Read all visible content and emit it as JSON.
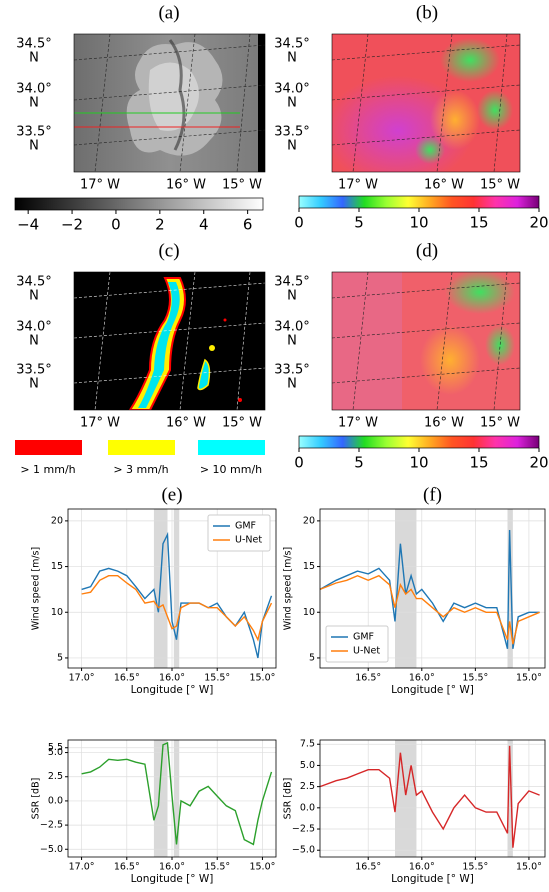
{
  "maps": [
    {
      "label": "(a)"
    },
    {
      "label": "(b)"
    },
    {
      "label": "(c)"
    },
    {
      "label": "(d)"
    }
  ],
  "map_lat_labels": [
    [
      "34.5°",
      "N"
    ],
    [
      "34.0°",
      "N"
    ],
    [
      "33.5°",
      "N"
    ]
  ],
  "map_lon_labels": [
    "17° W",
    "16° W",
    "15° W"
  ],
  "colorbars": [
    {
      "xlim": [
        -4.6,
        6.7
      ],
      "colors": [
        "#000000",
        "#ffffff"
      ],
      "ticks": [
        {
          "value": -4,
          "label": "−4"
        },
        {
          "value": -2,
          "label": "−2"
        },
        0,
        2,
        4,
        6
      ]
    },
    {
      "xlim": [
        0,
        20
      ],
      "colors": [
        "#9ff",
        "#3cf",
        "#36f",
        "#2d2",
        "#9f3",
        "#ff3",
        "#fa2",
        "#f52",
        "#f33",
        "#f3a",
        "#d2d",
        "#707"
      ],
      "ticks": [
        0,
        5,
        10,
        15,
        20
      ]
    },
    {
      "xlim": [
        0,
        20
      ],
      "colors": [
        "#9ff",
        "#3cf",
        "#36f",
        "#2d2",
        "#9f3",
        "#ff3",
        "#fa2",
        "#f52",
        "#f33",
        "#f3a",
        "#d2d",
        "#707"
      ],
      "ticks": [
        0,
        5,
        10,
        15,
        20
      ]
    }
  ],
  "rain_legend": [
    {
      "label": "> 1 mm/h",
      "color": "#ff0000"
    },
    {
      "label": "> 3 mm/h",
      "color": "#ffff00"
    },
    {
      "label": "> 10 mm/h",
      "color": "#00ffff"
    }
  ],
  "chart_data": [
    {
      "type": "line",
      "title": "(e)",
      "ylabel": "Wind speed [m/s]",
      "xlabel": "Longitude [° W]",
      "legend": "upper right",
      "grid": true,
      "xlim": [
        17.15,
        14.85
      ],
      "ylim": [
        3.9,
        21.3
      ],
      "xticks": [
        {
          "value": 17.0,
          "label": "17.0°"
        },
        {
          "value": 16.5,
          "label": "16.5°"
        },
        {
          "value": 16.0,
          "label": "16.0°"
        },
        {
          "value": 15.5,
          "label": "15.5°"
        },
        {
          "value": 15.0,
          "label": "15.0°"
        }
      ],
      "yticks": [
        5,
        10,
        15,
        20
      ],
      "shaded_spans": [
        [
          16.2,
          16.05
        ],
        [
          15.98,
          15.92
        ]
      ],
      "x": [
        17.0,
        16.9,
        16.8,
        16.7,
        16.6,
        16.5,
        16.4,
        16.3,
        16.2,
        16.15,
        16.1,
        16.05,
        16.0,
        15.95,
        15.9,
        15.8,
        15.7,
        15.6,
        15.5,
        15.4,
        15.3,
        15.2,
        15.1,
        15.05,
        15.0,
        14.9
      ],
      "series": [
        {
          "name": "GMF",
          "color": "#1f77b4",
          "values": [
            12.5,
            12.8,
            14.5,
            14.8,
            14.5,
            14.0,
            12.8,
            11.5,
            12.5,
            10,
            17.5,
            18.5,
            9,
            7,
            11,
            11,
            11,
            10.5,
            11,
            9.5,
            8.5,
            10,
            7,
            5,
            9,
            11.8
          ]
        },
        {
          "name": "U-Net",
          "color": "#ff7f0e",
          "values": [
            12,
            12.2,
            13.5,
            14,
            14,
            13.2,
            12.5,
            11,
            11.2,
            10.5,
            10.8,
            9.5,
            8.2,
            8.5,
            10.5,
            11,
            11,
            10.5,
            10.5,
            9.5,
            8.5,
            9.5,
            8,
            7,
            9,
            11
          ]
        }
      ]
    },
    {
      "type": "line",
      "ylabel": "SSR [dB]",
      "xlabel": "Longitude [° W]",
      "grid": true,
      "color": "#2ca02c",
      "xlim": [
        17.15,
        14.85
      ],
      "ylim": [
        -5.8,
        6.3
      ],
      "xticks": [
        {
          "value": 17.0,
          "label": "17.0°"
        },
        {
          "value": 16.5,
          "label": "16.5°"
        },
        {
          "value": 16.0,
          "label": "16.0°"
        },
        {
          "value": 15.5,
          "label": "15.5°"
        },
        {
          "value": 15.0,
          "label": "15.0°"
        }
      ],
      "yticks": [
        5.5,
        {
          "value": 5.0,
          "label": "5.0"
        },
        2.5,
        {
          "value": 0,
          "label": "0.0"
        },
        {
          "value": -2.5,
          "label": "−2.5"
        },
        {
          "value": -5.0,
          "label": "−5.0"
        }
      ],
      "shaded_spans": [
        [
          16.2,
          16.05
        ],
        [
          15.98,
          15.92
        ]
      ],
      "x": [
        17.0,
        16.9,
        16.8,
        16.7,
        16.6,
        16.5,
        16.4,
        16.3,
        16.2,
        16.15,
        16.1,
        16.05,
        16.0,
        15.95,
        15.9,
        15.8,
        15.7,
        15.6,
        15.5,
        15.4,
        15.3,
        15.2,
        15.1,
        15.05,
        15.0,
        14.9
      ],
      "values": [
        2.8,
        3,
        3.5,
        4.3,
        4.2,
        4.3,
        4,
        3.8,
        -2,
        -0.5,
        5.8,
        6,
        0.5,
        -4.5,
        0,
        -0.5,
        1,
        1.5,
        0.5,
        -0.5,
        -1,
        -4,
        -4.5,
        -2,
        0,
        3
      ]
    },
    {
      "type": "line",
      "title": "(f)",
      "ylabel": "Wind speed [m/s]",
      "xlabel": "Longitude [° W]",
      "legend": "lower left",
      "grid": true,
      "xlim": [
        16.95,
        14.85
      ],
      "ylim": [
        3.9,
        21.3
      ],
      "xticks": [
        {
          "value": 16.5,
          "label": "16.5°"
        },
        {
          "value": 16.0,
          "label": "16.0°"
        },
        {
          "value": 15.5,
          "label": "15.5°"
        },
        {
          "value": 15.0,
          "label": "15.0°"
        }
      ],
      "yticks": [
        5,
        10,
        15,
        20
      ],
      "shaded_spans": [
        [
          16.25,
          16.05
        ],
        [
          15.2,
          15.15
        ]
      ],
      "x": [
        16.95,
        16.8,
        16.7,
        16.6,
        16.5,
        16.4,
        16.3,
        16.25,
        16.2,
        16.15,
        16.1,
        16.05,
        16.0,
        15.9,
        15.8,
        15.7,
        15.6,
        15.5,
        15.4,
        15.3,
        15.2,
        15.18,
        15.15,
        15.1,
        15.0,
        14.9
      ],
      "series": [
        {
          "name": "GMF",
          "color": "#1f77b4",
          "values": [
            12.5,
            13.5,
            14,
            14.5,
            14.2,
            14.8,
            13.5,
            9,
            17.5,
            12,
            14,
            12,
            12.5,
            11,
            9,
            11,
            10.5,
            11,
            10.5,
            10.5,
            6,
            19,
            6,
            9.5,
            10,
            10
          ]
        },
        {
          "name": "U-Net",
          "color": "#ff7f0e",
          "values": [
            12.5,
            13.2,
            13.5,
            14,
            13.5,
            14,
            13,
            10.5,
            13,
            12,
            12.5,
            11.5,
            11.5,
            10.5,
            9.5,
            10.5,
            10,
            10.5,
            10,
            10,
            7,
            9,
            6.5,
            9,
            9.5,
            10
          ]
        }
      ]
    },
    {
      "type": "line",
      "ylabel": "SSR [dB]",
      "xlabel": "Longitude [° W]",
      "grid": true,
      "color": "#d62728",
      "xlim": [
        16.95,
        14.85
      ],
      "ylim": [
        -5.8,
        8.0
      ],
      "xticks": [
        {
          "value": 16.5,
          "label": "16.5°"
        },
        {
          "value": 16.0,
          "label": "16.0°"
        },
        {
          "value": 15.5,
          "label": "15.5°"
        },
        {
          "value": 15.0,
          "label": "15.0°"
        }
      ],
      "yticks": [
        {
          "value": 7.5,
          "label": "7.5"
        },
        {
          "value": 5.0,
          "label": "5.0"
        },
        2.5,
        {
          "value": 0,
          "label": "0.0"
        },
        {
          "value": -2.5,
          "label": "−2.5"
        },
        {
          "value": -5.0,
          "label": "−5.0"
        }
      ],
      "shaded_spans": [
        [
          16.25,
          16.05
        ],
        [
          15.2,
          15.15
        ]
      ],
      "x": [
        16.95,
        16.8,
        16.7,
        16.6,
        16.5,
        16.4,
        16.3,
        16.25,
        16.2,
        16.15,
        16.1,
        16.05,
        16.0,
        15.9,
        15.8,
        15.7,
        15.6,
        15.5,
        15.4,
        15.3,
        15.2,
        15.18,
        15.15,
        15.1,
        15.0,
        14.9
      ],
      "values": [
        2.5,
        3.2,
        3.5,
        4,
        4.5,
        4.5,
        3.5,
        -0.5,
        6.5,
        1.5,
        5,
        1.5,
        2,
        -0.5,
        -2.5,
        0,
        1.5,
        0,
        -0.5,
        -0.5,
        -3,
        7.3,
        -4.7,
        0.5,
        2,
        1.5
      ]
    }
  ]
}
